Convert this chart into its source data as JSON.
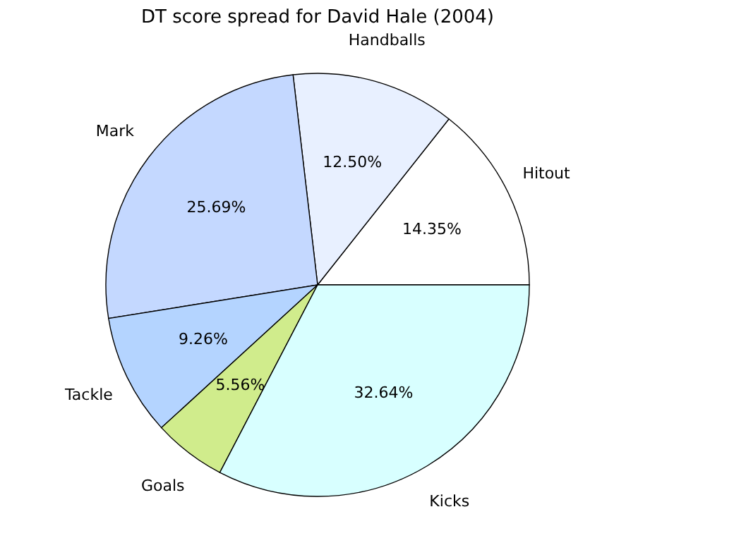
{
  "chart_data": {
    "type": "pie",
    "title": "DT score spread for David Hale (2004)",
    "categories": [
      "Hitout",
      "Handballs",
      "Mark",
      "Tackle",
      "Goals",
      "Kicks"
    ],
    "values": [
      14.35,
      12.5,
      25.69,
      9.26,
      5.56,
      32.64
    ],
    "value_labels": [
      "14.35%",
      "12.50%",
      "25.69%",
      "9.26%",
      "5.56%",
      "32.64%"
    ],
    "colors": [
      "#ffffff",
      "#e8f0ff",
      "#c4d8ff",
      "#b4d4ff",
      "#d0ec8c",
      "#d8ffff"
    ],
    "legend": false
  }
}
